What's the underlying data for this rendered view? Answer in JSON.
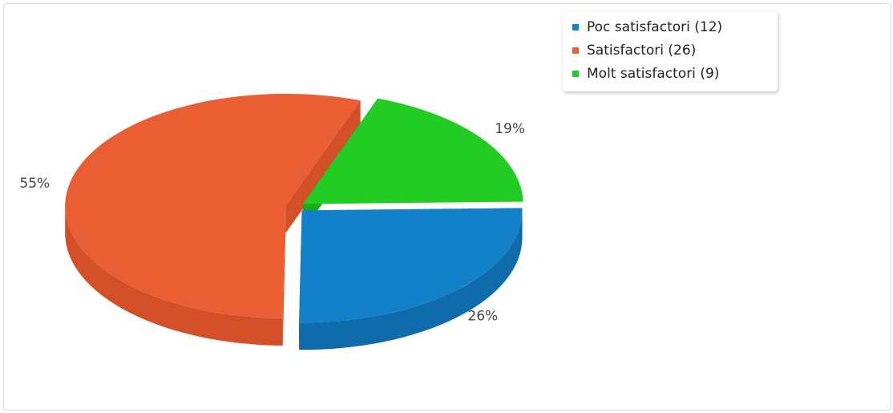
{
  "chart_data": {
    "type": "pie",
    "title": "",
    "slices": [
      {
        "label": "Poc satisfactori (12)",
        "value": 12,
        "percent_label": "26%",
        "color": "#1381c9",
        "side_color": "#0f6bab"
      },
      {
        "label": "Satisfactori (26)",
        "value": 26,
        "percent_label": "55%",
        "color": "#e95f33",
        "side_color": "#d24f27"
      },
      {
        "label": "Molt satisfactori (9)",
        "value": 9,
        "percent_label": "19%",
        "color": "#22cc22",
        "side_color": "#1aaa1a"
      }
    ],
    "legend_position": "top-right",
    "style": "3d-exploded"
  }
}
